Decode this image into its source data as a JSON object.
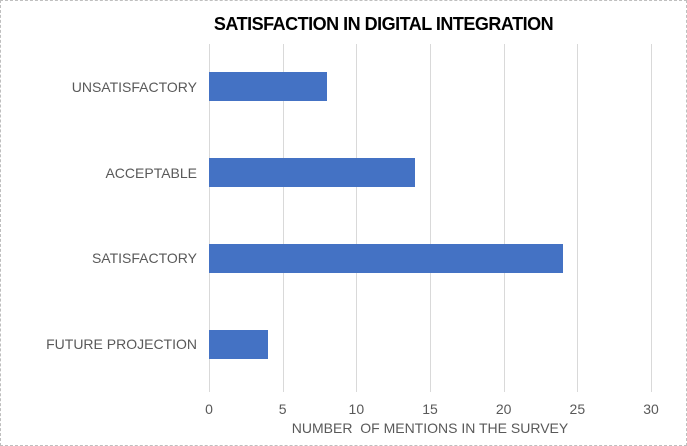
{
  "chart_data": {
    "type": "bar",
    "orientation": "horizontal",
    "title": "SATISFACTION IN DIGITAL INTEGRATION",
    "categories": [
      "UNSATISFACTORY",
      "ACCEPTABLE",
      "SATISFACTORY",
      "FUTURE PROJECTION"
    ],
    "values": [
      8,
      14,
      24,
      4
    ],
    "xlabel": "NUMBER  OF MENTIONS IN THE SURVEY",
    "ylabel": "",
    "xlim": [
      0,
      30
    ],
    "xticks": [
      0,
      5,
      10,
      15,
      20,
      25,
      30
    ],
    "grid": true,
    "legend": false,
    "colors": {
      "bar": "#4472C4",
      "gridline": "#d9d9d9",
      "axis_text": "#595959",
      "title_text": "#000000"
    }
  }
}
